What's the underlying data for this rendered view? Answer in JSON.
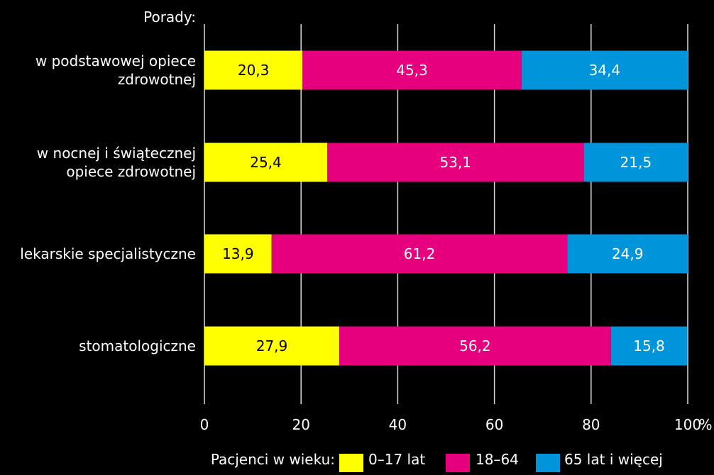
{
  "chart_data": {
    "type": "bar",
    "orientation": "horizontal",
    "stacked": true,
    "category_axis_title": "Porady:",
    "categories": [
      [
        "w podstawowej opiece",
        "zdrowotnej"
      ],
      [
        "w nocnej i świątecznej",
        "opiece zdrowotnej"
      ],
      [
        "lekarskie specjalistyczne"
      ],
      [
        "stomatologiczne"
      ]
    ],
    "series": [
      {
        "name": "0–17 lat",
        "color": "#ffff00",
        "values": [
          20.3,
          25.4,
          13.9,
          27.9
        ],
        "labels": [
          "20,3",
          "25,4",
          "13,9",
          "27,9"
        ]
      },
      {
        "name": "18–64",
        "color": "#e6007e",
        "values": [
          45.3,
          53.1,
          61.2,
          56.2
        ],
        "labels": [
          "45,3",
          "53,1",
          "61,2",
          "56,2"
        ]
      },
      {
        "name": "65 lat i więcej",
        "color": "#0095db",
        "values": [
          34.4,
          21.5,
          24.9,
          15.8
        ],
        "labels": [
          "34,4",
          "21,5",
          "24,9",
          "15,8"
        ]
      }
    ],
    "xlim": [
      0,
      100
    ],
    "xticks": [
      0,
      20,
      40,
      60,
      80,
      100
    ],
    "xtick_labels": [
      "0",
      "20",
      "40",
      "60",
      "80",
      "100"
    ],
    "x_unit": "%",
    "grid": true,
    "legend_title": "Pacjenci w wieku:",
    "legend_position": "bottom"
  }
}
